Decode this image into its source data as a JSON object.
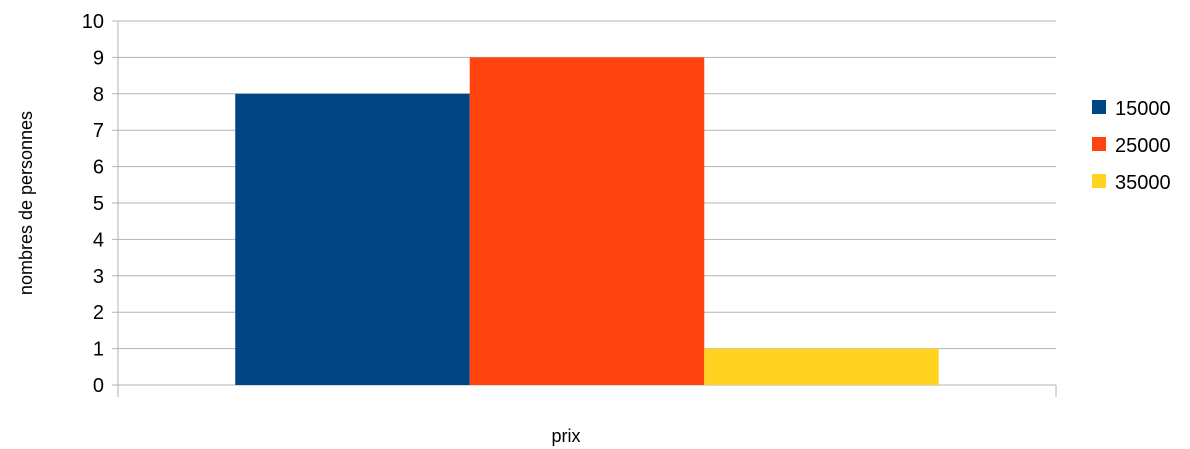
{
  "chart_data": {
    "type": "bar",
    "title": "",
    "xlabel": "prix",
    "ylabel": "nombres de personnes",
    "categories": [
      ""
    ],
    "series": [
      {
        "name": "15000",
        "values": [
          8
        ],
        "color": "#004586"
      },
      {
        "name": "25000",
        "values": [
          9
        ],
        "color": "#ff420e"
      },
      {
        "name": "35000",
        "values": [
          1
        ],
        "color": "#ffd320"
      }
    ],
    "ylim": [
      0,
      10
    ],
    "yticks": [
      0,
      1,
      2,
      3,
      4,
      5,
      6,
      7,
      8,
      9,
      10
    ],
    "grid": true,
    "legend_position": "right",
    "gridline_color": "#b3b3b3"
  }
}
